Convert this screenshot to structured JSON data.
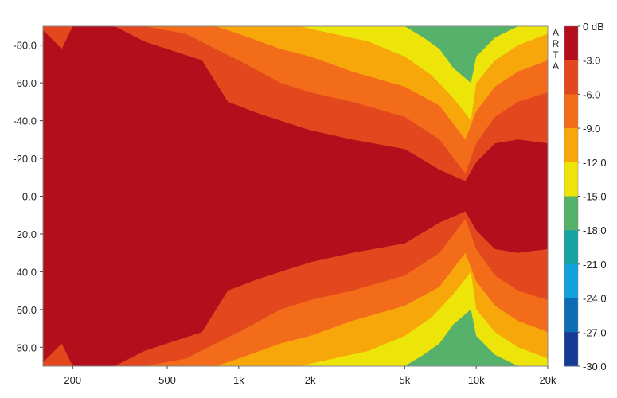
{
  "chart_data": {
    "type": "heatmap",
    "watermark": "ARTA",
    "x_scale": "log",
    "x_range_hz": [
      150,
      20000
    ],
    "x_ticks": [
      {
        "value": 200,
        "label": "200"
      },
      {
        "value": 500,
        "label": "500"
      },
      {
        "value": 1000,
        "label": "1k"
      },
      {
        "value": 2000,
        "label": "2k"
      },
      {
        "value": 5000,
        "label": "5k"
      },
      {
        "value": 10000,
        "label": "10k"
      },
      {
        "value": 20000,
        "label": "20k"
      }
    ],
    "y_range": [
      -90,
      90
    ],
    "y_ticks": [
      {
        "value": -80,
        "label": "-80.0"
      },
      {
        "value": -60,
        "label": "-60.0"
      },
      {
        "value": -40,
        "label": "-40.0"
      },
      {
        "value": -20,
        "label": "-20.0"
      },
      {
        "value": 0,
        "label": "0.0"
      },
      {
        "value": 20,
        "label": "20.0"
      },
      {
        "value": 40,
        "label": "40.0"
      },
      {
        "value": 60,
        "label": "60.0"
      },
      {
        "value": 80,
        "label": "80.0"
      }
    ],
    "colorbar": {
      "labels": [
        "0 dB",
        "-3.0",
        "-6.0",
        "-9.0",
        "-12.0",
        "-15.0",
        "-18.0",
        "-21.0",
        "-24.0",
        "-27.0",
        "-30.0"
      ],
      "colors": [
        "#b20e1b",
        "#e2471e",
        "#f26c1a",
        "#f8a70b",
        "#ede40a",
        "#56b16a",
        "#17a3a0",
        "#12a1dd",
        "#0d6db4",
        "#163b96"
      ]
    },
    "contour_boundaries": [
      {
        "level": -3,
        "points": [
          [
            150,
            88
          ],
          [
            180,
            78
          ],
          [
            200,
            90
          ],
          [
            300,
            90
          ],
          [
            400,
            82
          ],
          [
            500,
            78
          ],
          [
            700,
            72
          ],
          [
            900,
            50
          ],
          [
            1200,
            44
          ],
          [
            1500,
            40
          ],
          [
            2000,
            35
          ],
          [
            3000,
            30
          ],
          [
            5000,
            25
          ],
          [
            7000,
            14
          ],
          [
            9000,
            8
          ],
          [
            10000,
            18
          ],
          [
            12000,
            28
          ],
          [
            15000,
            30
          ],
          [
            20000,
            28
          ]
        ]
      },
      {
        "level": -6,
        "points": [
          [
            250,
            90
          ],
          [
            400,
            90
          ],
          [
            600,
            86
          ],
          [
            800,
            78
          ],
          [
            1000,
            72
          ],
          [
            1500,
            60
          ],
          [
            2000,
            55
          ],
          [
            3000,
            50
          ],
          [
            5000,
            42
          ],
          [
            7000,
            30
          ],
          [
            9000,
            12
          ],
          [
            10000,
            28
          ],
          [
            12000,
            42
          ],
          [
            15000,
            50
          ],
          [
            20000,
            55
          ]
        ]
      },
      {
        "level": -9,
        "points": [
          [
            800,
            90
          ],
          [
            1000,
            86
          ],
          [
            1500,
            78
          ],
          [
            2000,
            74
          ],
          [
            3000,
            66
          ],
          [
            5000,
            58
          ],
          [
            7000,
            48
          ],
          [
            9000,
            30
          ],
          [
            10000,
            45
          ],
          [
            12000,
            58
          ],
          [
            15000,
            66
          ],
          [
            20000,
            72
          ]
        ]
      },
      {
        "level": -12,
        "points": [
          [
            1800,
            90
          ],
          [
            2500,
            86
          ],
          [
            3500,
            82
          ],
          [
            5000,
            74
          ],
          [
            6500,
            64
          ],
          [
            8000,
            52
          ],
          [
            9500,
            40
          ],
          [
            10000,
            60
          ],
          [
            12000,
            72
          ],
          [
            15000,
            80
          ],
          [
            20000,
            86
          ]
        ]
      },
      {
        "level": -15,
        "points": [
          [
            5000,
            90
          ],
          [
            6000,
            84
          ],
          [
            7000,
            78
          ],
          [
            8000,
            68
          ],
          [
            9500,
            60
          ],
          [
            10000,
            74
          ],
          [
            12000,
            84
          ],
          [
            15000,
            90
          ],
          [
            20000,
            90
          ]
        ]
      }
    ]
  }
}
